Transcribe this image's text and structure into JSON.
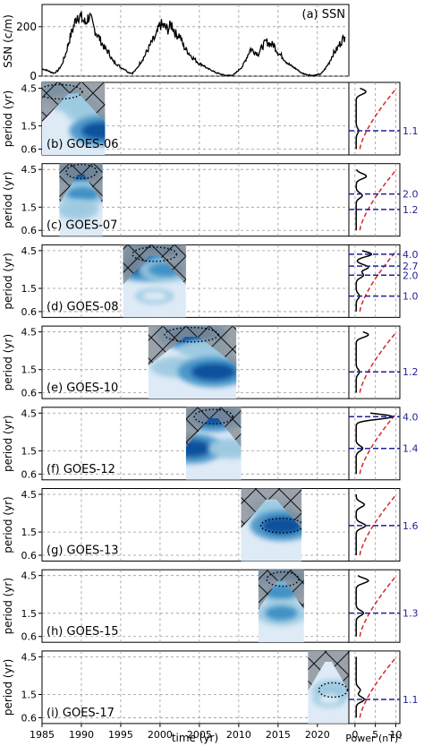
{
  "chart_data": [
    {
      "panel": "ssn",
      "type": "line",
      "label": "(a) SSN",
      "ylabel": "SSN (c/m)",
      "yticks": [
        0,
        200
      ],
      "ylim": [
        0,
        290
      ],
      "xlim": [
        1985,
        2024
      ],
      "color": "#000000",
      "x": [
        1985.0,
        1985.5,
        1986.0,
        1986.5,
        1987.0,
        1987.5,
        1988.0,
        1988.5,
        1989.0,
        1989.5,
        1990.0,
        1990.5,
        1991.0,
        1991.5,
        1992.0,
        1992.5,
        1993.0,
        1993.5,
        1994.0,
        1994.5,
        1995.0,
        1995.5,
        1996.0,
        1996.5,
        1997.0,
        1997.5,
        1998.0,
        1998.5,
        1999.0,
        1999.5,
        2000.0,
        2000.5,
        2001.0,
        2001.5,
        2002.0,
        2002.5,
        2003.0,
        2003.5,
        2004.0,
        2004.5,
        2005.0,
        2005.5,
        2006.0,
        2006.5,
        2007.0,
        2007.5,
        2008.0,
        2008.5,
        2009.0,
        2009.5,
        2010.0,
        2010.5,
        2011.0,
        2011.5,
        2012.0,
        2012.5,
        2013.0,
        2013.5,
        2014.0,
        2014.5,
        2015.0,
        2015.5,
        2016.0,
        2016.5,
        2017.0,
        2017.5,
        2018.0,
        2018.5,
        2019.0,
        2019.5,
        2020.0,
        2020.5,
        2021.0,
        2021.5,
        2022.0,
        2022.5,
        2023.0,
        2023.5
      ],
      "y": [
        30,
        25,
        18,
        12,
        22,
        45,
        90,
        150,
        200,
        250,
        235,
        215,
        245,
        200,
        170,
        140,
        110,
        95,
        60,
        50,
        35,
        28,
        15,
        12,
        28,
        55,
        80,
        110,
        140,
        160,
        210,
        200,
        190,
        210,
        170,
        165,
        120,
        100,
        80,
        65,
        50,
        45,
        30,
        25,
        15,
        10,
        5,
        3,
        3,
        8,
        25,
        40,
        75,
        110,
        100,
        90,
        120,
        140,
        130,
        125,
        95,
        80,
        60,
        45,
        35,
        25,
        12,
        8,
        5,
        2,
        5,
        10,
        30,
        55,
        90,
        110,
        140,
        160
      ]
    },
    {
      "panel": "wavelet",
      "type": "heatmap",
      "ylabel": "period (yr)",
      "yticks": [
        4.5,
        1.5,
        0.6
      ],
      "xlim": [
        1985,
        2024
      ],
      "xticks": [
        1985,
        1990,
        1995,
        2000,
        2005,
        2010,
        2015,
        2020
      ],
      "xlabel": "time (yr)",
      "colormap": [
        "#deebf7",
        "#9ecae1",
        "#4292c6",
        "#08519c"
      ],
      "coi_color": "#8a9097",
      "significance_color": "#000000",
      "rows": [
        {
          "label": "(b) GOES-06",
          "start": 1985.0,
          "end": 1993.0,
          "blobs": [
            {
              "t": 1987.3,
              "p": 4.0,
              "level": 2
            },
            {
              "t": 1989.0,
              "p": 2.8,
              "level": 1
            },
            {
              "t": 1991.0,
              "p": 2.0,
              "level": 1
            },
            {
              "t": 1992.6,
              "p": 1.1,
              "level": 3
            }
          ]
        },
        {
          "label": "(c) GOES-07",
          "start": 1987.2,
          "end": 1992.7,
          "blobs": [
            {
              "t": 1990.0,
              "p": 4.2,
              "level": 3
            },
            {
              "t": 1990.2,
              "p": 2.0,
              "level": 2
            },
            {
              "t": 1989.5,
              "p": 1.2,
              "level": 1
            }
          ]
        },
        {
          "label": "(d) GOES-08",
          "start": 1995.3,
          "end": 2003.3,
          "blobs": [
            {
              "t": 1999.3,
              "p": 4.0,
              "level": 3
            },
            {
              "t": 1998.0,
              "p": 2.7,
              "level": 3
            },
            {
              "t": 2000.8,
              "p": 2.4,
              "level": 2
            },
            {
              "t": 1999.3,
              "p": 1.0,
              "level": 0
            }
          ]
        },
        {
          "label": "(e) GOES-10",
          "start": 1998.5,
          "end": 2009.7,
          "blobs": [
            {
              "t": 2004.0,
              "p": 4.1,
              "level": 3
            },
            {
              "t": 2005.8,
              "p": 2.5,
              "level": 1
            },
            {
              "t": 2002.2,
              "p": 1.4,
              "level": 1
            },
            {
              "t": 2006.8,
              "p": 1.2,
              "level": 3
            }
          ]
        },
        {
          "label": "(f) GOES-12",
          "start": 2003.3,
          "end": 2010.3,
          "blobs": [
            {
              "t": 2006.8,
              "p": 4.0,
              "level": 3
            },
            {
              "t": 2004.0,
              "p": 1.4,
              "level": 3
            },
            {
              "t": 2009.0,
              "p": 1.4,
              "level": 1
            }
          ]
        },
        {
          "label": "(g) GOES-13",
          "start": 2010.3,
          "end": 2018.0,
          "blobs": [
            {
              "t": 2014.2,
              "p": 2.8,
              "level": 1
            },
            {
              "t": 2015.5,
              "p": 1.6,
              "level": 3
            }
          ]
        },
        {
          "label": "(h) GOES-15",
          "start": 2012.5,
          "end": 2018.3,
          "blobs": [
            {
              "t": 2015.6,
              "p": 4.0,
              "level": 3
            },
            {
              "t": 2015.4,
              "p": 2.6,
              "level": 2
            },
            {
              "t": 2015.4,
              "p": 1.3,
              "level": 2
            }
          ]
        },
        {
          "label": "(i) GOES-17",
          "start": 2018.8,
          "end": 2024.0,
          "blobs": [
            {
              "t": 2022.0,
              "p": 1.5,
              "level": 1
            },
            {
              "t": 2021.5,
              "p": 1.1,
              "level": 0
            }
          ]
        }
      ]
    },
    {
      "panel": "global-power",
      "type": "line",
      "xlabel": "Power (nT)²",
      "xticks": [
        0,
        5,
        10
      ],
      "xlim": [
        -1.5,
        11
      ],
      "power_color": "#000000",
      "significance_color": "#d62728",
      "marker_color": "#1f1f99",
      "rows": [
        {
          "peaks": [
            {
              "p": 4.0,
              "a": 2.4
            },
            {
              "p": 1.1,
              "a": 0.6
            }
          ],
          "base": 0.3,
          "markers": [
            "1.1"
          ],
          "marker_periods": [
            1.1
          ]
        },
        {
          "peaks": [
            {
              "p": 3.6,
              "a": 2.5
            },
            {
              "p": 1.9,
              "a": 1.5
            }
          ],
          "base": 0.3,
          "markers": [
            "2.0",
            "1.2"
          ],
          "marker_periods": [
            2.0,
            1.2
          ]
        },
        {
          "peaks": [
            {
              "p": 4.0,
              "a": 3.8
            },
            {
              "p": 2.6,
              "a": 3.0
            },
            {
              "p": 2.0,
              "a": 1.8
            },
            {
              "p": 1.0,
              "a": 0.8
            }
          ],
          "base": 0.3,
          "markers": [
            "4.0",
            "2.7",
            "2.0",
            "1.0"
          ],
          "marker_periods": [
            4.0,
            2.7,
            2.0,
            1.0
          ]
        },
        {
          "peaks": [
            {
              "p": 4.1,
              "a": 3.0
            },
            {
              "p": 1.2,
              "a": 0.8
            }
          ],
          "base": 0.3,
          "markers": [
            "1.2"
          ],
          "marker_periods": [
            1.2
          ]
        },
        {
          "peaks": [
            {
              "p": 4.0,
              "a": 9.0
            },
            {
              "p": 1.4,
              "a": 1.6
            }
          ],
          "base": 0.3,
          "markers": [
            "4.0",
            "1.4"
          ],
          "marker_periods": [
            4.0,
            1.4
          ]
        },
        {
          "peaks": [
            {
              "p": 3.2,
              "a": 2.0
            },
            {
              "p": 1.6,
              "a": 2.3
            }
          ],
          "base": 0.3,
          "markers": [
            "1.6"
          ],
          "marker_periods": [
            1.6
          ]
        },
        {
          "peaks": [
            {
              "p": 3.8,
              "a": 3.0
            },
            {
              "p": 1.3,
              "a": 1.8
            }
          ],
          "base": 0.3,
          "markers": [
            "1.3"
          ],
          "marker_periods": [
            1.3
          ]
        },
        {
          "peaks": [
            {
              "p": 1.5,
              "a": 1.0
            },
            {
              "p": 1.1,
              "a": 2.0
            }
          ],
          "base": 0.3,
          "markers": [
            "1.1"
          ],
          "marker_periods": [
            1.1
          ]
        }
      ]
    }
  ]
}
